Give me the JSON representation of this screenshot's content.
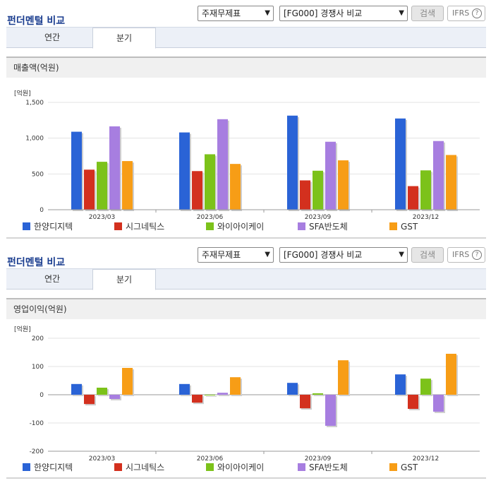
{
  "toolbar": {
    "title": "펀더멘털 비교",
    "select1": "주재무제표",
    "select2": "[FG000] 경쟁사 비교",
    "search_label": "검색",
    "ifrs_label": "IFRS",
    "help_glyph": "?"
  },
  "tabs": {
    "annual": "연간",
    "quarterly": "분기",
    "active": "quarterly"
  },
  "legend": [
    {
      "name": "한양디지텍",
      "color": "#2a63d6"
    },
    {
      "name": "시그네틱스",
      "color": "#d3301e"
    },
    {
      "name": "와이아이케이",
      "color": "#7cc21a"
    },
    {
      "name": "SFA반도체",
      "color": "#a77ee0"
    },
    {
      "name": "GST",
      "color": "#f79d16"
    }
  ],
  "chart_data": [
    {
      "type": "bar",
      "title": "매출액(억원)",
      "unit": "[억원]",
      "categories": [
        "2023/03",
        "2023/06",
        "2023/09",
        "2023/12"
      ],
      "ylim": [
        0,
        1500
      ],
      "yticks": [
        0,
        500,
        1000,
        1500
      ],
      "ytick_labels": [
        "0",
        "500",
        "1,000",
        "1,500"
      ],
      "series": [
        {
          "name": "한양디지텍",
          "values": [
            1090,
            1080,
            1315,
            1275
          ]
        },
        {
          "name": "시그네틱스",
          "values": [
            560,
            540,
            410,
            330
          ]
        },
        {
          "name": "와이아이케이",
          "values": [
            670,
            775,
            545,
            550
          ]
        },
        {
          "name": "SFA반도체",
          "values": [
            1165,
            1265,
            950,
            960
          ]
        },
        {
          "name": "GST",
          "values": [
            680,
            640,
            690,
            765
          ]
        }
      ]
    },
    {
      "type": "bar",
      "title": "영업이익(억원)",
      "unit": "[억원]",
      "categories": [
        "2023/03",
        "2023/06",
        "2023/09",
        "2023/12"
      ],
      "ylim": [
        -200,
        200
      ],
      "yticks": [
        -200,
        -100,
        0,
        100,
        200
      ],
      "ytick_labels": [
        "-200",
        "-100",
        "0",
        "100",
        "200"
      ],
      "series": [
        {
          "name": "한양디지텍",
          "values": [
            38,
            38,
            42,
            72
          ]
        },
        {
          "name": "시그네틱스",
          "values": [
            -33,
            -28,
            -48,
            -50
          ]
        },
        {
          "name": "와이아이케이",
          "values": [
            25,
            -2,
            5,
            57
          ]
        },
        {
          "name": "SFA반도체",
          "values": [
            -15,
            7,
            -110,
            -60
          ]
        },
        {
          "name": "GST",
          "values": [
            95,
            62,
            122,
            145
          ]
        }
      ]
    }
  ]
}
